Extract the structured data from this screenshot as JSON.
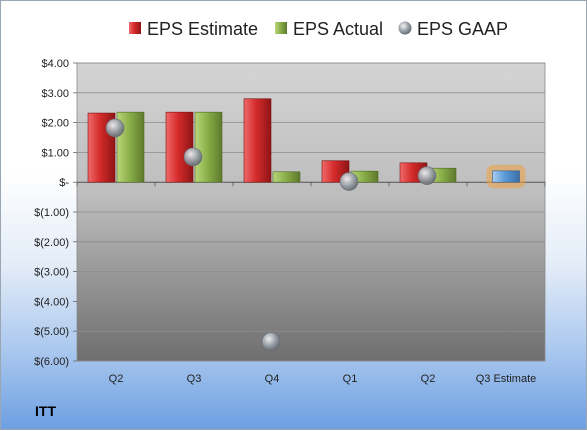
{
  "company": "ITT",
  "colors": {
    "estimate": "#d42a2a",
    "actual": "#8cb04a",
    "gaap": "#9aa0a8",
    "next_estimate": "#5b9bd8",
    "next_estimate_glow": "#f0a040"
  },
  "chart_data": {
    "type": "bar",
    "categories": [
      "Q2",
      "Q3",
      "Q4",
      "Q1",
      "Q2",
      "Q3 Estimate"
    ],
    "ylim": [
      -6,
      4
    ],
    "yticks": [
      4,
      3,
      2,
      1,
      0,
      -1,
      -2,
      -3,
      -4,
      -5,
      -6
    ],
    "ytick_labels": [
      "$4.00",
      "$3.00",
      "$2.00",
      "$1.00",
      "$-",
      "$(1.00)",
      "$(2.00)",
      "$(3.00)",
      "$(4.00)",
      "$(5.00)",
      "$(6.00)"
    ],
    "legend_position": "top",
    "grid": true,
    "series": [
      {
        "name": "EPS Estimate",
        "kind": "bar",
        "values": [
          2.32,
          2.35,
          2.8,
          0.72,
          0.65,
          null
        ]
      },
      {
        "name": "EPS Actual",
        "kind": "bar",
        "values": [
          2.35,
          2.35,
          0.35,
          0.37,
          0.47,
          0.38
        ]
      },
      {
        "name": "EPS GAAP",
        "kind": "point",
        "values": [
          1.82,
          0.85,
          -5.35,
          0.02,
          0.22,
          null
        ]
      }
    ],
    "highlight_category_index": 5
  }
}
